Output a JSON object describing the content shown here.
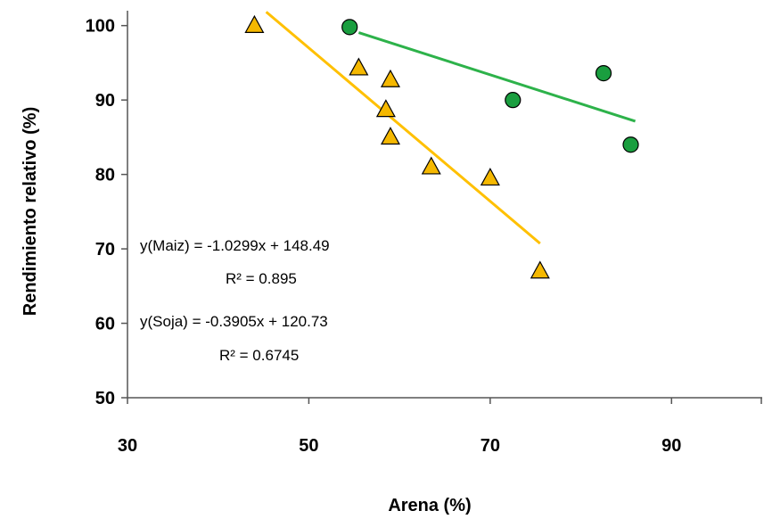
{
  "chart_data": {
    "type": "scatter",
    "title": "",
    "xlabel": "Arena (%)",
    "ylabel": "Rendimiento relativo (%)",
    "xlim": [
      30,
      100
    ],
    "ylim": [
      50,
      102
    ],
    "xticks": [
      30,
      50,
      70,
      90
    ],
    "yticks": [
      50,
      60,
      70,
      80,
      90,
      100
    ],
    "grid": false,
    "legend": "none",
    "series": [
      {
        "marker": "triangle",
        "color": "#f5b800",
        "line_color": "#ffc000",
        "points": [
          {
            "x": 44,
            "y": 100
          },
          {
            "x": 55.5,
            "y": 94.3
          },
          {
            "x": 59,
            "y": 92.7
          },
          {
            "x": 58.5,
            "y": 88.7
          },
          {
            "x": 59,
            "y": 85
          },
          {
            "x": 63.5,
            "y": 81
          },
          {
            "x": 70,
            "y": 79.5
          },
          {
            "x": 75.5,
            "y": 67
          }
        ],
        "trendline": {
          "slope": -1.0299,
          "intercept": 148.49,
          "x_range": [
            45.3,
            75.5
          ]
        }
      },
      {
        "marker": "circle",
        "color": "#1a9e3f",
        "line_color": "#2db24a",
        "points": [
          {
            "x": 54.5,
            "y": 99.8
          },
          {
            "x": 72.5,
            "y": 90
          },
          {
            "x": 82.5,
            "y": 93.6
          },
          {
            "x": 85.5,
            "y": 84
          }
        ],
        "trendline": {
          "slope": -0.3905,
          "intercept": 120.73,
          "x_range": [
            55.5,
            86
          ]
        }
      }
    ],
    "annotations": [
      {
        "line1": "y(Maiz) = -1.0299x + 148.49",
        "line2": "R² = 0.895"
      },
      {
        "line1": "y(Soja) = -0.3905x + 120.73",
        "line2": "R² = 0.6745"
      }
    ]
  }
}
